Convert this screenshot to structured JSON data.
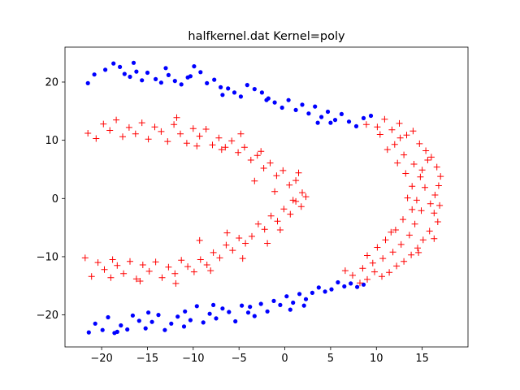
{
  "chart_data": {
    "type": "scatter",
    "title": "halfkernel.dat Kernel=poly",
    "xlabel": "",
    "ylabel": "",
    "xlim": [
      -24,
      20
    ],
    "ylim": [
      -25.5,
      26
    ],
    "xticks": [
      -20,
      -15,
      -10,
      -5,
      0,
      5,
      10,
      15
    ],
    "yticks": [
      -20,
      -10,
      0,
      10,
      20
    ],
    "xtick_labels": [
      "−20",
      "−15",
      "−10",
      "−5",
      "0",
      "5",
      "10",
      "15"
    ],
    "ytick_labels": [
      "−20",
      "−10",
      "0",
      "10",
      "20"
    ],
    "grid": false,
    "legend": "none",
    "series": [
      {
        "marker": "dot",
        "color": "#0000ff",
        "points": [
          [
            -21.5,
            19.8
          ],
          [
            -20.8,
            21.3
          ],
          [
            -19.6,
            22.1
          ],
          [
            -18.7,
            23.2
          ],
          [
            -18.0,
            22.6
          ],
          [
            -17.5,
            21.4
          ],
          [
            -16.9,
            20.9
          ],
          [
            -16.2,
            21.8
          ],
          [
            -15.6,
            20.3
          ],
          [
            -15.0,
            21.6
          ],
          [
            -14.1,
            20.5
          ],
          [
            -13.5,
            19.9
          ],
          [
            -12.7,
            21.2
          ],
          [
            -12.0,
            20.2
          ],
          [
            -11.3,
            19.6
          ],
          [
            -10.6,
            20.8
          ],
          [
            -9.9,
            22.7
          ],
          [
            -9.2,
            21.7
          ],
          [
            -8.5,
            19.8
          ],
          [
            -7.7,
            20.4
          ],
          [
            -7.0,
            19.1
          ],
          [
            -6.2,
            18.9
          ],
          [
            -5.5,
            18.2
          ],
          [
            -4.8,
            17.5
          ],
          [
            -4.1,
            19.5
          ],
          [
            -3.3,
            18.8
          ],
          [
            -2.5,
            18.2
          ],
          [
            -1.8,
            17.2
          ],
          [
            -1.1,
            16.5
          ],
          [
            -0.3,
            15.6
          ],
          [
            0.4,
            16.9
          ],
          [
            1.2,
            15.2
          ],
          [
            1.9,
            16.1
          ],
          [
            2.6,
            14.6
          ],
          [
            3.3,
            15.8
          ],
          [
            4.0,
            14.0
          ],
          [
            4.7,
            14.9
          ],
          [
            5.5,
            13.5
          ],
          [
            6.2,
            14.5
          ],
          [
            7.0,
            13.2
          ],
          [
            7.8,
            12.4
          ],
          [
            8.6,
            13.8
          ],
          [
            9.4,
            14.2
          ],
          [
            -13.0,
            22.4
          ],
          [
            -10.3,
            21.0
          ],
          [
            -6.8,
            17.8
          ],
          [
            -2.0,
            16.9
          ],
          [
            3.6,
            13.0
          ],
          [
            5.0,
            13.0
          ],
          [
            -16.5,
            23.3
          ],
          [
            -21.4,
            -23.0
          ],
          [
            -20.7,
            -21.5
          ],
          [
            -19.9,
            -22.6
          ],
          [
            -19.3,
            -20.4
          ],
          [
            -18.6,
            -23.1
          ],
          [
            -17.9,
            -21.8
          ],
          [
            -17.2,
            -22.5
          ],
          [
            -16.6,
            -20.1
          ],
          [
            -15.9,
            -21.0
          ],
          [
            -15.2,
            -22.3
          ],
          [
            -14.5,
            -21.2
          ],
          [
            -13.8,
            -20.0
          ],
          [
            -13.1,
            -22.6
          ],
          [
            -12.4,
            -21.5
          ],
          [
            -11.7,
            -20.3
          ],
          [
            -11.0,
            -22.0
          ],
          [
            -10.3,
            -20.9
          ],
          [
            -9.6,
            -18.5
          ],
          [
            -8.9,
            -21.3
          ],
          [
            -8.2,
            -19.8
          ],
          [
            -7.5,
            -20.6
          ],
          [
            -6.8,
            -18.9
          ],
          [
            -6.1,
            -19.5
          ],
          [
            -5.4,
            -21.1
          ],
          [
            -4.7,
            -18.4
          ],
          [
            -4.0,
            -19.6
          ],
          [
            -3.3,
            -20.2
          ],
          [
            -2.6,
            -18.1
          ],
          [
            -1.9,
            -19.4
          ],
          [
            -1.2,
            -17.6
          ],
          [
            -0.5,
            -18.3
          ],
          [
            0.2,
            -16.8
          ],
          [
            0.9,
            -17.9
          ],
          [
            1.6,
            -16.4
          ],
          [
            2.3,
            -17.3
          ],
          [
            3.0,
            -16.2
          ],
          [
            3.7,
            -15.3
          ],
          [
            4.4,
            -16.0
          ],
          [
            5.1,
            -15.6
          ],
          [
            5.8,
            -14.4
          ],
          [
            6.5,
            -15.1
          ],
          [
            7.2,
            -14.6
          ],
          [
            7.9,
            -15.2
          ],
          [
            8.6,
            -14.8
          ],
          [
            -18.3,
            -22.9
          ],
          [
            -14.9,
            -19.6
          ],
          [
            -10.9,
            -19.4
          ],
          [
            -7.8,
            -18.3
          ],
          [
            -3.8,
            -18.6
          ],
          [
            0.6,
            -19.1
          ],
          [
            2.1,
            -18.4
          ]
        ]
      },
      {
        "marker": "plus",
        "color": "#ff0000",
        "points": [
          [
            -21.5,
            11.2
          ],
          [
            -20.6,
            10.3
          ],
          [
            -19.8,
            12.8
          ],
          [
            -19.1,
            11.7
          ],
          [
            -18.4,
            13.5
          ],
          [
            -17.7,
            10.6
          ],
          [
            -17.0,
            12.2
          ],
          [
            -16.3,
            11.1
          ],
          [
            -15.6,
            13.0
          ],
          [
            -14.9,
            10.2
          ],
          [
            -14.2,
            12.3
          ],
          [
            -13.5,
            11.5
          ],
          [
            -12.8,
            9.8
          ],
          [
            -12.1,
            12.7
          ],
          [
            -11.4,
            11.1
          ],
          [
            -10.7,
            9.5
          ],
          [
            -10.0,
            12.0
          ],
          [
            -9.3,
            10.7
          ],
          [
            -8.6,
            11.9
          ],
          [
            -7.9,
            9.2
          ],
          [
            -7.2,
            10.4
          ],
          [
            -6.5,
            8.8
          ],
          [
            -5.8,
            9.9
          ],
          [
            -5.1,
            7.9
          ],
          [
            -4.4,
            8.8
          ],
          [
            -3.7,
            6.6
          ],
          [
            -3.0,
            7.4
          ],
          [
            -2.3,
            5.2
          ],
          [
            -1.6,
            6.1
          ],
          [
            -0.9,
            3.9
          ],
          [
            -0.2,
            4.8
          ],
          [
            0.5,
            2.3
          ],
          [
            1.2,
            3.1
          ],
          [
            1.9,
            1.0
          ],
          [
            2.3,
            0.3
          ],
          [
            1.8,
            -1.4
          ],
          [
            1.2,
            -0.5
          ],
          [
            0.6,
            -2.7
          ],
          [
            -0.1,
            -1.8
          ],
          [
            -0.8,
            -3.9
          ],
          [
            -1.5,
            -3.0
          ],
          [
            -2.2,
            -5.3
          ],
          [
            -2.9,
            -4.4
          ],
          [
            -3.6,
            -6.5
          ],
          [
            -4.3,
            -7.7
          ],
          [
            -5.0,
            -6.8
          ],
          [
            -5.7,
            -8.9
          ],
          [
            -6.4,
            -8.0
          ],
          [
            -7.1,
            -10.2
          ],
          [
            -7.8,
            -9.3
          ],
          [
            -8.5,
            -11.4
          ],
          [
            -9.2,
            -10.5
          ],
          [
            -9.9,
            -12.6
          ],
          [
            -10.6,
            -11.7
          ],
          [
            -11.3,
            -10.6
          ],
          [
            -12.0,
            -12.9
          ],
          [
            -12.7,
            -11.8
          ],
          [
            -13.4,
            -13.6
          ],
          [
            -14.1,
            -10.9
          ],
          [
            -14.8,
            -12.5
          ],
          [
            -15.5,
            -11.4
          ],
          [
            -16.2,
            -13.8
          ],
          [
            -16.9,
            -10.8
          ],
          [
            -17.6,
            -12.9
          ],
          [
            -18.3,
            -11.5
          ],
          [
            -19.0,
            -13.6
          ],
          [
            -19.7,
            -12.2
          ],
          [
            -20.4,
            -11.0
          ],
          [
            -21.1,
            -13.4
          ],
          [
            -21.8,
            -10.2
          ],
          [
            -11.8,
            13.9
          ],
          [
            -9.6,
            9.0
          ],
          [
            -6.9,
            8.4
          ],
          [
            -4.8,
            11.1
          ],
          [
            -2.6,
            8.1
          ],
          [
            -1.1,
            1.2
          ],
          [
            0.9,
            -0.3
          ],
          [
            -1.9,
            -7.7
          ],
          [
            -4.6,
            -10.3
          ],
          [
            -8.1,
            -12.4
          ],
          [
            -11.9,
            -14.6
          ],
          [
            -15.8,
            -14.2
          ],
          [
            -18.8,
            -10.5
          ],
          [
            -3.3,
            3.0
          ],
          [
            1.5,
            4.4
          ],
          [
            -0.5,
            -5.4
          ],
          [
            -6.3,
            -5.9
          ],
          [
            -9.3,
            -7.2
          ],
          [
            10.1,
            12.3
          ],
          [
            10.9,
            13.6
          ],
          [
            11.7,
            11.8
          ],
          [
            12.5,
            12.9
          ],
          [
            13.3,
            10.9
          ],
          [
            14.0,
            11.6
          ],
          [
            14.7,
            9.4
          ],
          [
            15.4,
            8.2
          ],
          [
            16.0,
            7.1
          ],
          [
            16.6,
            5.4
          ],
          [
            17.0,
            3.8
          ],
          [
            16.8,
            2.2
          ],
          [
            16.4,
            0.6
          ],
          [
            15.9,
            -0.9
          ],
          [
            16.3,
            -2.5
          ],
          [
            16.7,
            -4.0
          ],
          [
            15.8,
            -5.6
          ],
          [
            15.1,
            -7.1
          ],
          [
            14.5,
            -8.5
          ],
          [
            13.8,
            -9.7
          ],
          [
            13.0,
            -10.8
          ],
          [
            12.2,
            -11.6
          ],
          [
            11.4,
            -12.7
          ],
          [
            10.6,
            -13.4
          ],
          [
            9.8,
            -12.6
          ],
          [
            9.0,
            -13.9
          ],
          [
            8.2,
            -14.5
          ],
          [
            7.4,
            -13.2
          ],
          [
            6.6,
            -12.4
          ],
          [
            12.0,
            9.3
          ],
          [
            13.0,
            7.5
          ],
          [
            14.1,
            5.9
          ],
          [
            14.8,
            3.7
          ],
          [
            15.3,
            1.9
          ],
          [
            14.4,
            -0.3
          ],
          [
            14.9,
            -2.1
          ],
          [
            14.2,
            -4.4
          ],
          [
            13.6,
            -6.3
          ],
          [
            12.7,
            -7.9
          ],
          [
            11.8,
            -9.2
          ],
          [
            10.7,
            -10.3
          ],
          [
            9.6,
            -11.1
          ],
          [
            8.5,
            -12.0
          ],
          [
            11.2,
            8.4
          ],
          [
            12.3,
            6.1
          ],
          [
            13.2,
            4.3
          ],
          [
            13.9,
            2.1
          ],
          [
            13.4,
            0.1
          ],
          [
            13.9,
            -1.9
          ],
          [
            12.9,
            -3.6
          ],
          [
            12.1,
            -5.4
          ],
          [
            11.0,
            -7.1
          ],
          [
            10.1,
            -8.4
          ],
          [
            9.0,
            -9.8
          ],
          [
            15.6,
            6.6
          ],
          [
            16.3,
            -6.9
          ],
          [
            10.4,
            11.0
          ],
          [
            8.9,
            12.7
          ],
          [
            11.6,
            -5.8
          ],
          [
            12.6,
            10.4
          ],
          [
            14.6,
            -9.3
          ],
          [
            16.9,
            -1.2
          ],
          [
            15.0,
            4.9
          ]
        ]
      }
    ]
  }
}
